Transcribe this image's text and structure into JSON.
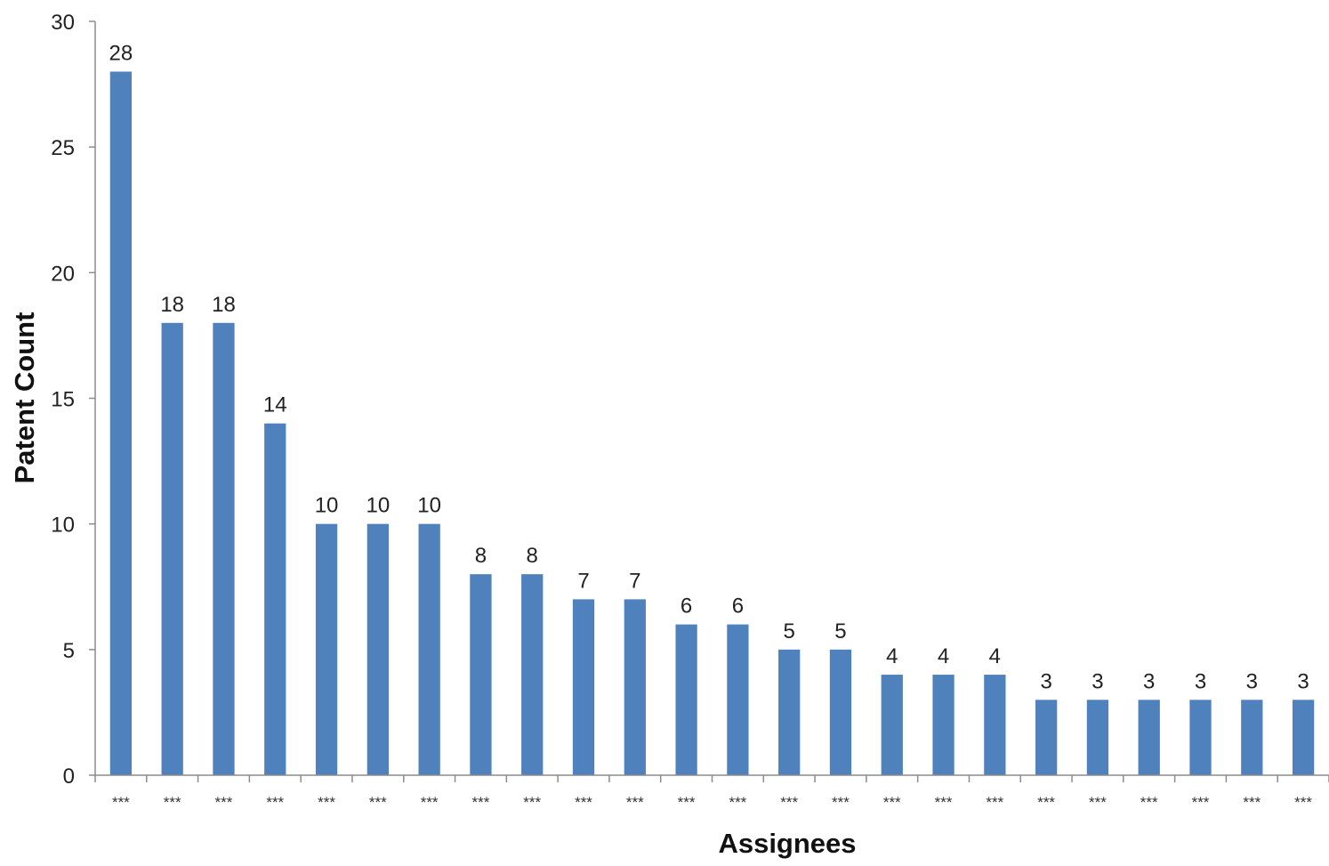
{
  "chart_data": {
    "type": "bar",
    "title": "",
    "xlabel": "Assignees",
    "ylabel": "Patent Count",
    "ylim": [
      0,
      30
    ],
    "yticks": [
      0,
      5,
      10,
      15,
      20,
      25,
      30
    ],
    "categories": [
      "***",
      "***",
      "***",
      "***",
      "***",
      "***",
      "***",
      "***",
      "***",
      "***",
      "***",
      "***",
      "***",
      "***",
      "***",
      "***",
      "***",
      "***",
      "***",
      "***",
      "***",
      "***",
      "***",
      "***"
    ],
    "values": [
      28,
      18,
      18,
      14,
      10,
      10,
      10,
      8,
      8,
      7,
      7,
      6,
      6,
      5,
      5,
      4,
      4,
      4,
      3,
      3,
      3,
      3,
      3,
      3
    ],
    "data_labels": true,
    "grid": false,
    "legend": "none",
    "bar_color": "#4F81BD",
    "axis_color": "#8C8C8C"
  }
}
